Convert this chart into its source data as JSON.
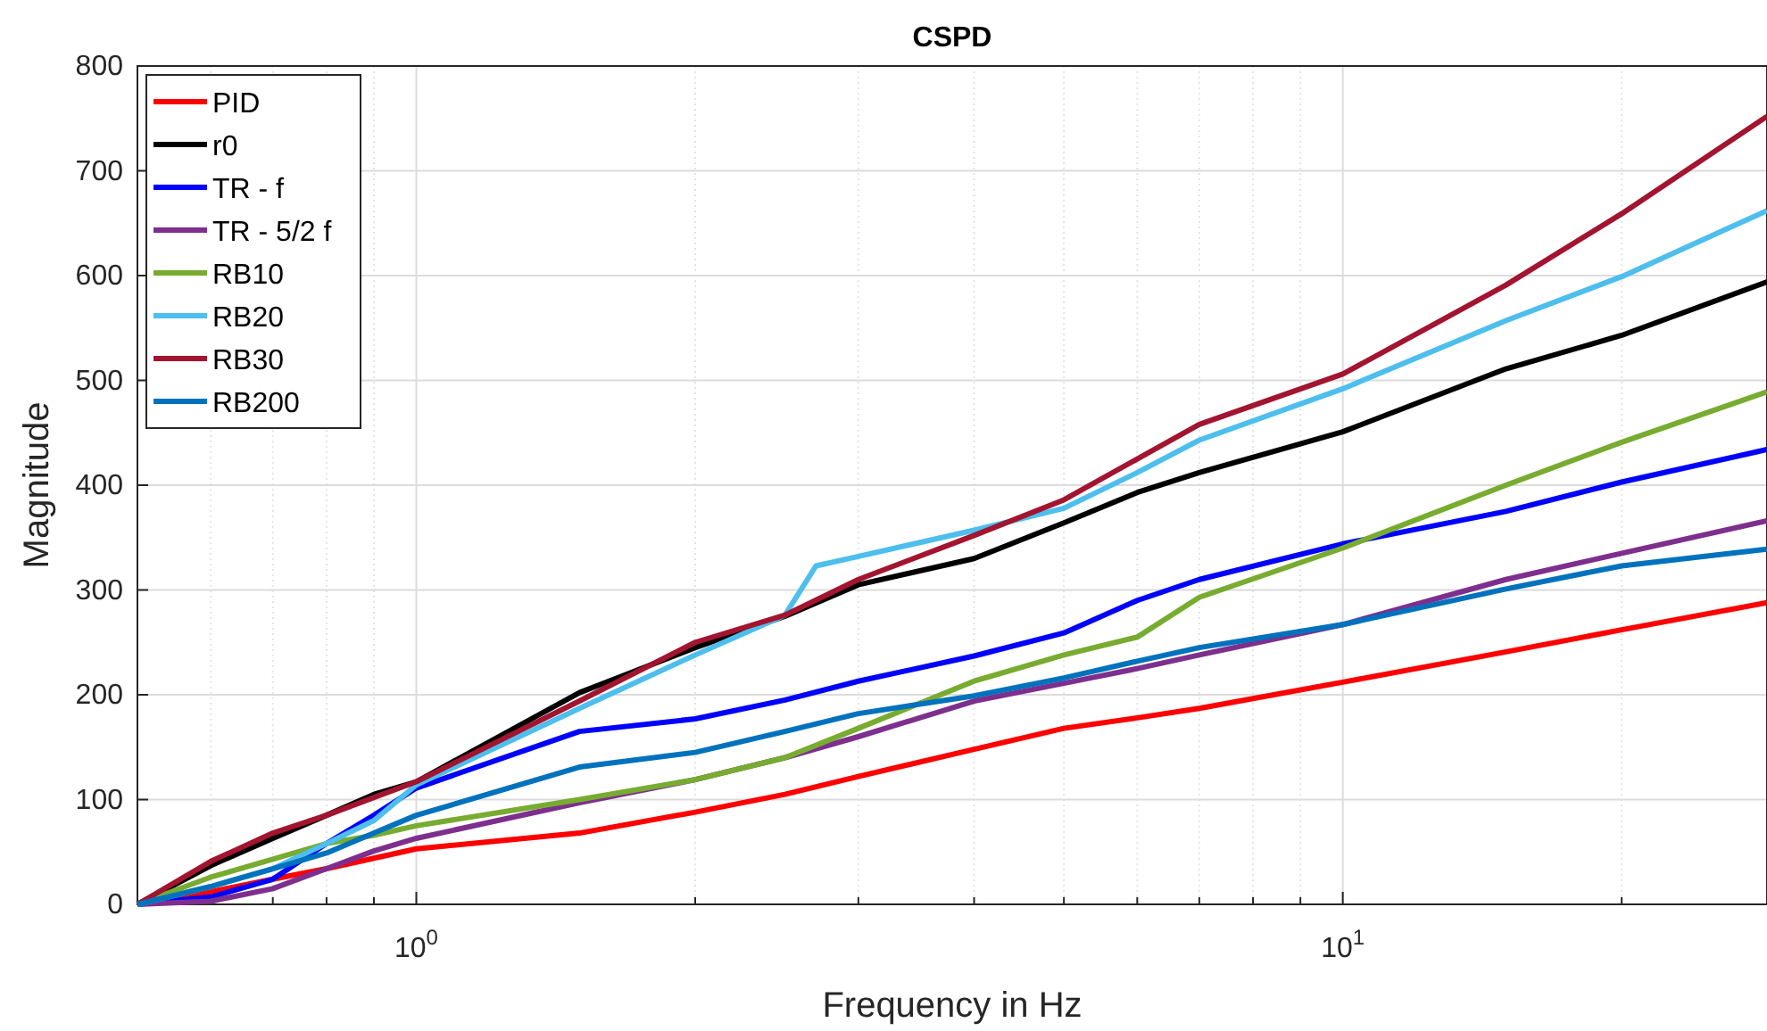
{
  "chart_data": {
    "type": "line",
    "title": "CSPD",
    "xlabel": "Frequency in Hz",
    "ylabel": "Magnitude",
    "x": [
      0.5,
      0.6,
      0.7,
      0.8,
      0.9,
      1,
      1.5,
      2,
      2.5,
      3,
      4,
      5,
      6,
      7,
      10,
      15,
      20,
      28.7
    ],
    "series": [
      {
        "name": "PID",
        "color": "#ff0000",
        "values": [
          0,
          12,
          24,
          34,
          44,
          53,
          68,
          88,
          105,
          122,
          148,
          168,
          178,
          187,
          212,
          241,
          262,
          288
        ]
      },
      {
        "name": "r0",
        "color": "#000000",
        "values": [
          0,
          37,
          63,
          85,
          105,
          117,
          202,
          245,
          275,
          305,
          330,
          364,
          393,
          412,
          451,
          511,
          543,
          594
        ]
      },
      {
        "name": "TR - f",
        "color": "#0000ff",
        "values": [
          0,
          7,
          24,
          58,
          85,
          111,
          165,
          177,
          195,
          213,
          237,
          259,
          290,
          310,
          344,
          375,
          403,
          434
        ]
      },
      {
        "name": "TR - 5/2 f",
        "color": "#7e2f8e",
        "values": [
          0,
          3,
          15,
          34,
          51,
          63,
          97,
          119,
          140,
          160,
          194,
          211,
          225,
          238,
          267,
          310,
          335,
          366
        ]
      },
      {
        "name": "RB10",
        "color": "#77ac30",
        "values": [
          0,
          26,
          43,
          58,
          66,
          75,
          100,
          119,
          140,
          168,
          213,
          238,
          255,
          293,
          340,
          400,
          441,
          489
        ]
      },
      {
        "name": "RB20",
        "color": "#4dbeee",
        "x": [
          0.5,
          0.6,
          0.7,
          0.8,
          0.9,
          1,
          1.5,
          2,
          2.5,
          2.7,
          3,
          4,
          5,
          6,
          7,
          10,
          15,
          20,
          28.7
        ],
        "values": [
          0,
          17,
          34,
          58,
          80,
          114,
          187,
          238,
          276,
          323,
          332,
          357,
          378,
          412,
          443,
          492,
          557,
          599,
          662
        ]
      },
      {
        "name": "RB30",
        "color": "#a2142f",
        "values": [
          0,
          41,
          68,
          85,
          102,
          117,
          194,
          250,
          276,
          310,
          352,
          386,
          425,
          458,
          506,
          591,
          659,
          752
        ]
      },
      {
        "name": "RB200",
        "color": "#0072bd",
        "values": [
          0,
          17,
          34,
          49,
          68,
          85,
          131,
          145,
          165,
          182,
          199,
          216,
          232,
          245,
          267,
          301,
          323,
          339
        ]
      }
    ],
    "log": "x",
    "xlim": [
      0.5,
      28.7
    ],
    "ylim": [
      0,
      800
    ],
    "xticks": [
      {
        "value": 0.5,
        "label": null
      },
      {
        "value": 0.6,
        "label": null
      },
      {
        "value": 0.7,
        "label": null
      },
      {
        "value": 0.8,
        "label": null
      },
      {
        "value": 0.9,
        "label": null
      },
      {
        "value": 1,
        "label": "10$^{0}$"
      },
      {
        "value": 2,
        "label": null
      },
      {
        "value": 3,
        "label": null
      },
      {
        "value": 4,
        "label": null
      },
      {
        "value": 5,
        "label": null
      },
      {
        "value": 6,
        "label": null
      },
      {
        "value": 7,
        "label": null
      },
      {
        "value": 8,
        "label": null
      },
      {
        "value": 9,
        "label": null
      },
      {
        "value": 10,
        "label": "10$^{1}$"
      },
      {
        "value": 20,
        "label": null
      }
    ],
    "yticks": [
      0,
      100,
      200,
      300,
      400,
      500,
      600,
      700,
      800
    ],
    "grid": true,
    "legend": "top left"
  }
}
